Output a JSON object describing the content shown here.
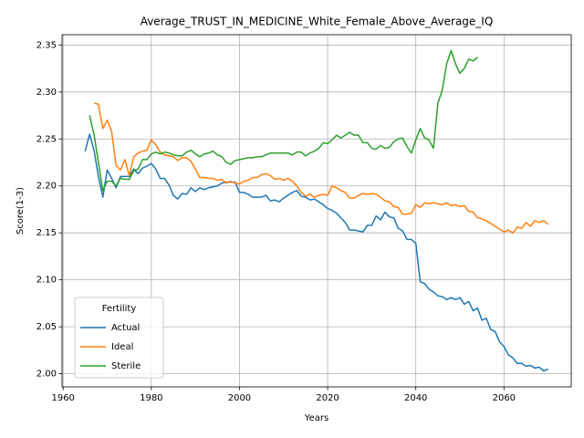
{
  "chart_data": {
    "type": "line",
    "title": "Average_TRUST_IN_MEDICINE_White_Female_Above_Average_IQ",
    "xlabel": "Years",
    "ylabel": "Score(1-3)",
    "legend_title": "Fertility",
    "legend": "lower left",
    "grid": true,
    "xlim": [
      1959.75,
      2075.25
    ],
    "xticks": [
      1960,
      1980,
      2000,
      2020,
      2040,
      2060
    ],
    "ylim": [
      1.986,
      2.361
    ],
    "yticks": [
      {
        "value": 2.0,
        "label": "2.00"
      },
      {
        "value": 2.05,
        "label": "2.05"
      },
      {
        "value": 2.1,
        "label": "2.10"
      },
      {
        "value": 2.15,
        "label": "2.15"
      },
      {
        "value": 2.2,
        "label": "2.20"
      },
      {
        "value": 2.25,
        "label": "2.25"
      },
      {
        "value": 2.3,
        "label": "2.30"
      },
      {
        "value": 2.35,
        "label": "2.35"
      }
    ],
    "x": [
      1965,
      1966,
      1967,
      1968,
      1969,
      1970,
      1971,
      1972,
      1973,
      1974,
      1975,
      1976,
      1977,
      1978,
      1979,
      1980,
      1981,
      1982,
      1983,
      1984,
      1985,
      1986,
      1987,
      1988,
      1989,
      1990,
      1991,
      1992,
      1993,
      1994,
      1995,
      1996,
      1997,
      1998,
      1999,
      2000,
      2001,
      2002,
      2003,
      2004,
      2005,
      2006,
      2007,
      2008,
      2009,
      2010,
      2011,
      2012,
      2013,
      2014,
      2015,
      2016,
      2017,
      2018,
      2019,
      2020,
      2021,
      2022,
      2023,
      2024,
      2025,
      2026,
      2027,
      2028,
      2029,
      2030,
      2031,
      2032,
      2033,
      2034,
      2035,
      2036,
      2037,
      2038,
      2039,
      2040,
      2041,
      2042,
      2043,
      2044,
      2045,
      2046,
      2047,
      2048,
      2049,
      2050,
      2051,
      2052,
      2053,
      2054,
      2055,
      2056,
      2057,
      2058,
      2059,
      2060,
      2061,
      2062,
      2063,
      2064,
      2065,
      2066,
      2067,
      2068,
      2069,
      2070
    ],
    "series": [
      {
        "name": "Actual",
        "color": "#1f77b4",
        "values": [
          2.237,
          2.255,
          2.238,
          2.21,
          2.188,
          2.217,
          2.208,
          2.198,
          2.21,
          2.21,
          2.21,
          2.218,
          2.213,
          2.219,
          2.221,
          2.224,
          2.218,
          2.208,
          2.208,
          2.201,
          2.19,
          2.186,
          2.192,
          2.191,
          2.198,
          2.194,
          2.198,
          2.196,
          2.198,
          2.199,
          2.2,
          2.203,
          2.204,
          2.204,
          2.204,
          2.193,
          2.193,
          2.191,
          2.188,
          2.188,
          2.188,
          2.19,
          2.184,
          2.185,
          2.183,
          2.187,
          2.19,
          2.193,
          2.195,
          2.189,
          2.188,
          2.185,
          2.186,
          2.183,
          2.18,
          2.176,
          2.174,
          2.171,
          2.166,
          2.161,
          2.153,
          2.153,
          2.152,
          2.151,
          2.158,
          2.158,
          2.168,
          2.164,
          2.172,
          2.167,
          2.166,
          2.155,
          2.152,
          2.143,
          2.143,
          2.139,
          2.098,
          2.096,
          2.09,
          2.087,
          2.083,
          2.082,
          2.079,
          2.081,
          2.079,
          2.081,
          2.074,
          2.077,
          2.067,
          2.07,
          2.057,
          2.059,
          2.047,
          2.045,
          2.034,
          2.029,
          2.02,
          2.017,
          2.011,
          2.011,
          2.008,
          2.009,
          2.006,
          2.007,
          2.003,
          2.005
        ]
      },
      {
        "name": "Ideal",
        "color": "#ff7f0e",
        "values": [
          null,
          null,
          2.288,
          2.287,
          2.261,
          2.27,
          2.258,
          2.222,
          2.217,
          2.228,
          2.211,
          2.231,
          2.235,
          2.237,
          2.238,
          2.249,
          2.244,
          2.236,
          2.233,
          2.232,
          2.231,
          2.227,
          2.23,
          2.23,
          2.226,
          2.218,
          2.209,
          2.209,
          2.208,
          2.208,
          2.206,
          2.207,
          2.203,
          2.205,
          2.203,
          2.202,
          2.205,
          2.206,
          2.209,
          2.209,
          2.212,
          2.213,
          2.211,
          2.207,
          2.208,
          2.206,
          2.208,
          2.205,
          2.2,
          2.193,
          2.189,
          2.191,
          2.188,
          2.19,
          2.191,
          2.19,
          2.2,
          2.198,
          2.195,
          2.193,
          2.187,
          2.187,
          2.19,
          2.192,
          2.191,
          2.192,
          2.191,
          2.188,
          2.184,
          2.183,
          2.178,
          2.177,
          2.17,
          2.17,
          2.171,
          2.18,
          2.177,
          2.182,
          2.181,
          2.182,
          2.181,
          2.18,
          2.182,
          2.179,
          2.18,
          2.178,
          2.179,
          2.173,
          2.172,
          2.166,
          2.165,
          2.163,
          2.16,
          2.157,
          2.154,
          2.151,
          2.153,
          2.15,
          2.156,
          2.155,
          2.161,
          2.157,
          2.163,
          2.161,
          2.163,
          2.159
        ]
      },
      {
        "name": "Sterile",
        "color": "#2ca02c",
        "values": [
          null,
          2.275,
          2.255,
          2.225,
          2.195,
          2.205,
          2.205,
          2.2,
          2.208,
          2.207,
          2.207,
          2.216,
          2.218,
          2.228,
          2.228,
          2.234,
          2.236,
          2.234,
          2.236,
          2.235,
          2.233,
          2.232,
          2.232,
          2.236,
          2.238,
          2.234,
          2.231,
          2.234,
          2.235,
          2.237,
          2.233,
          2.231,
          2.225,
          2.223,
          2.227,
          2.228,
          2.229,
          2.23,
          2.23,
          2.231,
          2.231,
          2.233,
          2.235,
          2.235,
          2.235,
          2.235,
          2.235,
          2.233,
          2.236,
          2.236,
          2.232,
          2.235,
          2.237,
          2.24,
          2.246,
          2.245,
          2.249,
          2.254,
          2.251,
          2.254,
          2.257,
          2.254,
          2.254,
          2.246,
          2.246,
          2.24,
          2.239,
          2.243,
          2.24,
          2.241,
          2.247,
          2.25,
          2.251,
          2.242,
          2.235,
          2.249,
          2.261,
          2.251,
          2.249,
          2.24,
          2.288,
          2.302,
          2.33,
          2.344,
          2.33,
          2.32,
          2.325,
          2.335,
          2.333,
          2.337,
          null,
          null,
          null,
          null,
          null,
          null,
          null,
          null,
          null,
          null,
          null,
          null,
          null,
          null,
          null,
          null
        ]
      }
    ]
  }
}
